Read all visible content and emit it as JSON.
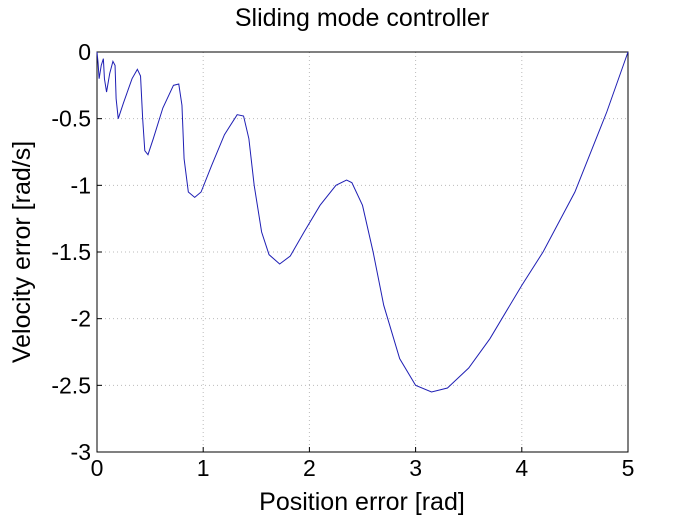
{
  "chart_data": {
    "type": "line",
    "title": "Sliding mode controller",
    "x_label": "Position error [rad]",
    "y_label": "Velocity error [rad/s]",
    "x": [
      5,
      4.8,
      4.5,
      4.2,
      4.0,
      3.7,
      3.5,
      3.3,
      3.15,
      3.0,
      2.85,
      2.7,
      2.6,
      2.5,
      2.4,
      2.35,
      2.25,
      2.1,
      1.95,
      1.82,
      1.72,
      1.62,
      1.55,
      1.48,
      1.43,
      1.38,
      1.32,
      1.2,
      1.08,
      0.98,
      0.92,
      0.86,
      0.82,
      0.8,
      0.77,
      0.72,
      0.62,
      0.53,
      0.48,
      0.45,
      0.43,
      0.41,
      0.38,
      0.33,
      0.25,
      0.2,
      0.18,
      0.17,
      0.15,
      0.12,
      0.09,
      0.07,
      0.06,
      0.04,
      0.02,
      0.01,
      0
    ],
    "values": [
      0,
      -0.45,
      -1.05,
      -1.5,
      -1.75,
      -2.15,
      -2.37,
      -2.52,
      -2.55,
      -2.5,
      -2.3,
      -1.9,
      -1.5,
      -1.15,
      -0.98,
      -0.96,
      -1.0,
      -1.15,
      -1.35,
      -1.53,
      -1.59,
      -1.52,
      -1.35,
      -1.0,
      -0.65,
      -0.48,
      -0.47,
      -0.62,
      -0.85,
      -1.05,
      -1.09,
      -1.05,
      -0.8,
      -0.4,
      -0.24,
      -0.25,
      -0.42,
      -0.65,
      -0.77,
      -0.74,
      -0.5,
      -0.18,
      -0.13,
      -0.2,
      -0.38,
      -0.5,
      -0.35,
      -0.1,
      -0.07,
      -0.16,
      -0.3,
      -0.2,
      -0.05,
      -0.1,
      -0.2,
      -0.08,
      0
    ],
    "color": "#1f1fb4",
    "xlim": [
      0,
      5
    ],
    "ylim": [
      -3,
      0
    ],
    "xticks": [
      0,
      1,
      2,
      3,
      4,
      5
    ],
    "yticks": [
      0,
      -0.5,
      -1,
      -1.5,
      -2,
      -2.5,
      -3
    ],
    "grid": true
  }
}
